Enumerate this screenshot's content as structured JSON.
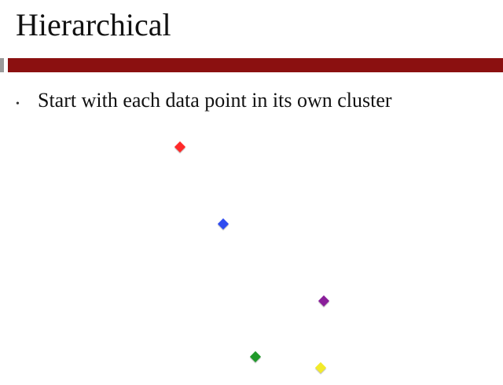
{
  "slide": {
    "title": "Hierarchical",
    "bullets": [
      {
        "marker": "•",
        "text": "Start with each data point in its own cluster"
      }
    ]
  },
  "colors": {
    "title_rule": "#8b1010",
    "rule_tab": "#9a9a9a"
  },
  "points": [
    {
      "name": "red-point",
      "color": "#ff2a2a"
    },
    {
      "name": "blue-point",
      "color": "#2f4cf0"
    },
    {
      "name": "purple-point",
      "color": "#8a1f9a"
    },
    {
      "name": "green-point",
      "color": "#1f9a2a"
    },
    {
      "name": "yellow-point",
      "color": "#f2ea2a"
    }
  ]
}
